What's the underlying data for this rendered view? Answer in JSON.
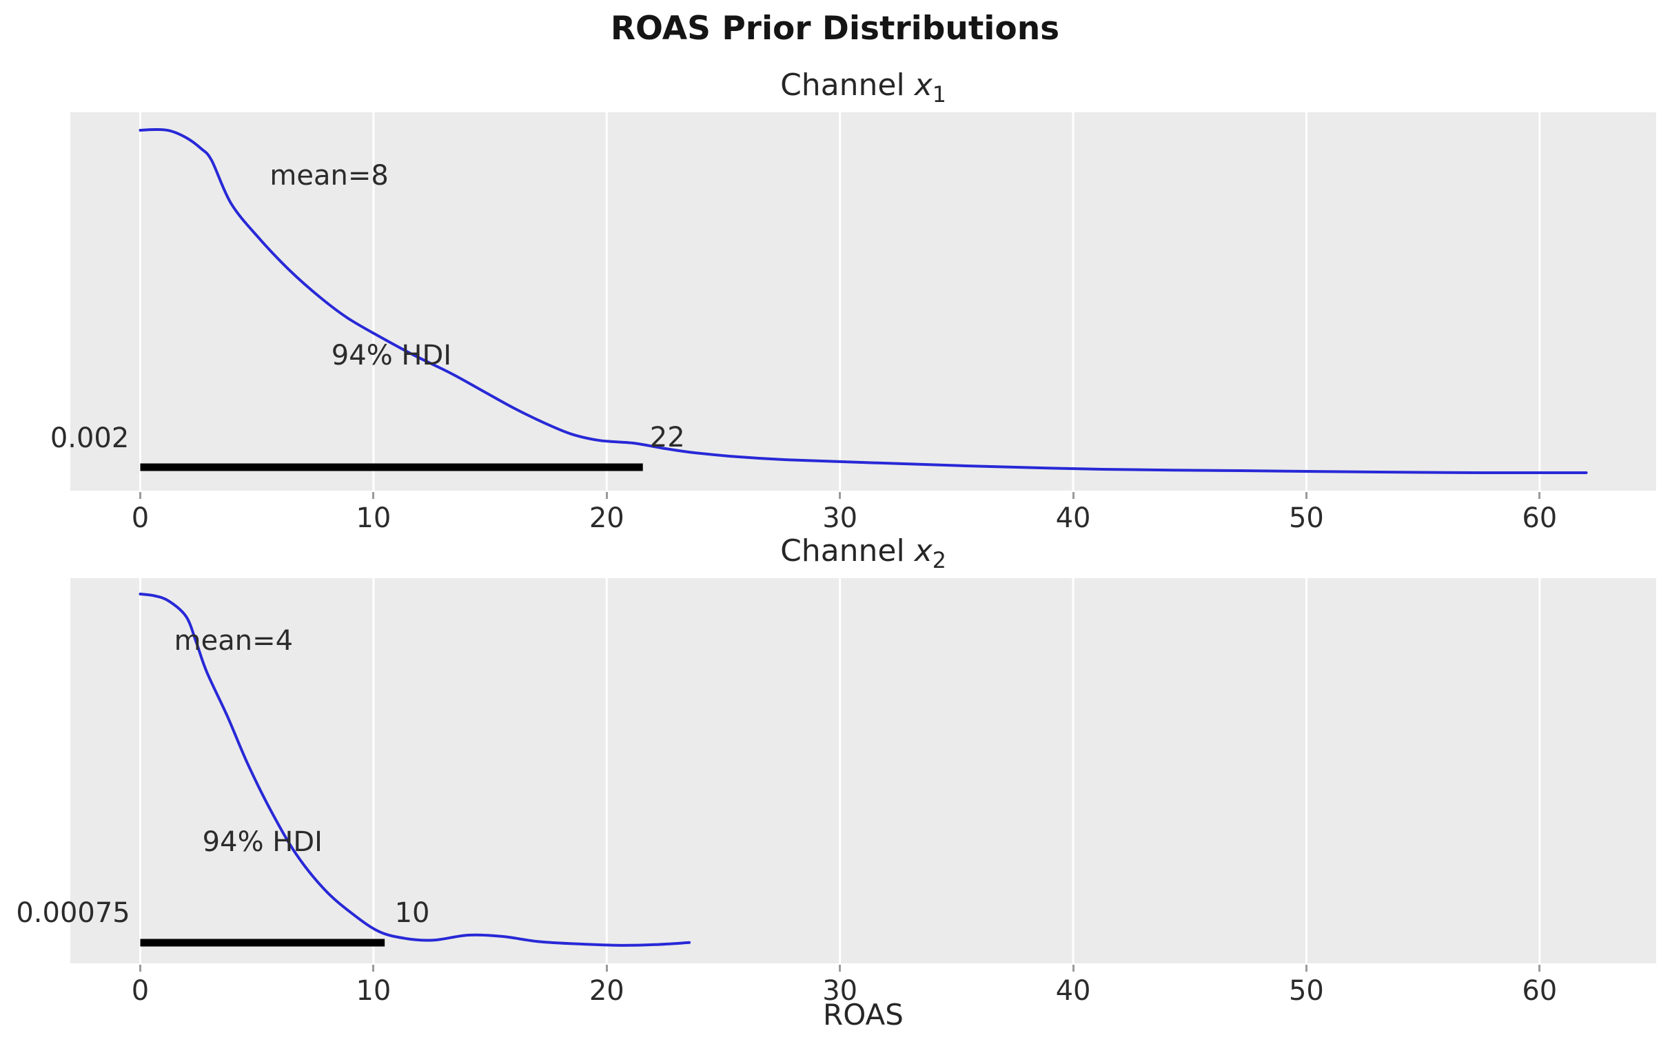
{
  "figure": {
    "title": "ROAS Prior Distributions",
    "xlabel": "ROAS"
  },
  "colors": {
    "curve": "#2828d7",
    "panel_bg": "#ebebeb",
    "gridline": "#ffffff",
    "hdi_bar": "#000000",
    "tick_mark": "#9a9a9a",
    "text": "#2b2b2b",
    "title": "#151515"
  },
  "chart_data": [
    {
      "type": "line",
      "kind": "kde-density",
      "title": {
        "prefix": "Channel ",
        "var": "x",
        "sub": "1"
      },
      "xlim": [
        -3,
        65
      ],
      "x_ticks": [
        0,
        10,
        20,
        30,
        40,
        50,
        60
      ],
      "grid": "vertical-white-lines",
      "mean": {
        "value": 8,
        "label": "mean=8"
      },
      "hdi": {
        "prob": "94%",
        "label": "94% HDI",
        "lower": 0.002,
        "upper": 22,
        "lower_label": "0.002",
        "upper_label": "22",
        "interval_x": [
          0,
          21.55
        ]
      },
      "curve": {
        "x": [
          0,
          0.7,
          1.3,
          2.0,
          2.6,
          3.06,
          3.89,
          5.07,
          6.4,
          7.73,
          8.91,
          10.33,
          11.72,
          13.34,
          14.67,
          16.0,
          17.33,
          18.51,
          19.7,
          21.17,
          22.36,
          23.54,
          25.31,
          27.68,
          30.93,
          35.36,
          41.27,
          47.18,
          53.09,
          57.5,
          62.0
        ],
        "y_rel": [
          0.998,
          1.0,
          0.996,
          0.975,
          0.945,
          0.91,
          0.785,
          0.685,
          0.59,
          0.51,
          0.45,
          0.394,
          0.343,
          0.289,
          0.239,
          0.189,
          0.145,
          0.112,
          0.094,
          0.086,
          0.072,
          0.06,
          0.048,
          0.038,
          0.03,
          0.02,
          0.01,
          0.006,
          0.002,
          0.0,
          0.0
        ]
      },
      "annotations": {
        "mean": {
          "x": 8.1,
          "y": 0.865
        },
        "hdi": {
          "x": 10.77,
          "y": 0.341
        },
        "lower": {
          "x": -2.17,
          "y": 0.1
        },
        "upper": {
          "x": 22.6,
          "y": 0.102
        }
      },
      "layout": {
        "y_baseline_frac": 0.9526,
        "y_peak_frac": 0.0455
      }
    },
    {
      "type": "line",
      "kind": "kde-density",
      "title": {
        "prefix": "Channel ",
        "var": "x",
        "sub": "2"
      },
      "xlim": [
        -3,
        65
      ],
      "x_ticks": [
        0,
        10,
        20,
        30,
        40,
        50,
        60
      ],
      "grid": "vertical-white-lines",
      "mean": {
        "value": 4,
        "label": "mean=4"
      },
      "hdi": {
        "prob": "94%",
        "label": "94% HDI",
        "lower": 0.00075,
        "upper": 10,
        "lower_label": "0.00075",
        "upper_label": "10",
        "interval_x": [
          0,
          10.48
        ]
      },
      "curve": {
        "x": [
          0,
          0.6,
          1.23,
          1.97,
          2.41,
          2.85,
          3.74,
          4.63,
          5.66,
          6.69,
          7.88,
          9.06,
          10.24,
          11.42,
          12.6,
          14.08,
          15.56,
          17.04,
          18.81,
          20.58,
          22.06,
          23.54
        ],
        "y_rel": [
          1.0,
          0.995,
          0.98,
          0.936,
          0.862,
          0.78,
          0.654,
          0.517,
          0.381,
          0.265,
          0.167,
          0.099,
          0.047,
          0.027,
          0.023,
          0.037,
          0.033,
          0.019,
          0.012,
          0.008,
          0.01,
          0.016
        ]
      },
      "annotations": {
        "mean": {
          "x": 4.0,
          "y": 0.868
        },
        "hdi": {
          "x": 5.24,
          "y": 0.3
        },
        "lower": {
          "x": -2.88,
          "y": 0.099
        },
        "upper": {
          "x": 11.66,
          "y": 0.099
        }
      },
      "layout": {
        "y_baseline_frac": 0.9606,
        "y_peak_frac": 0.0411
      }
    }
  ]
}
